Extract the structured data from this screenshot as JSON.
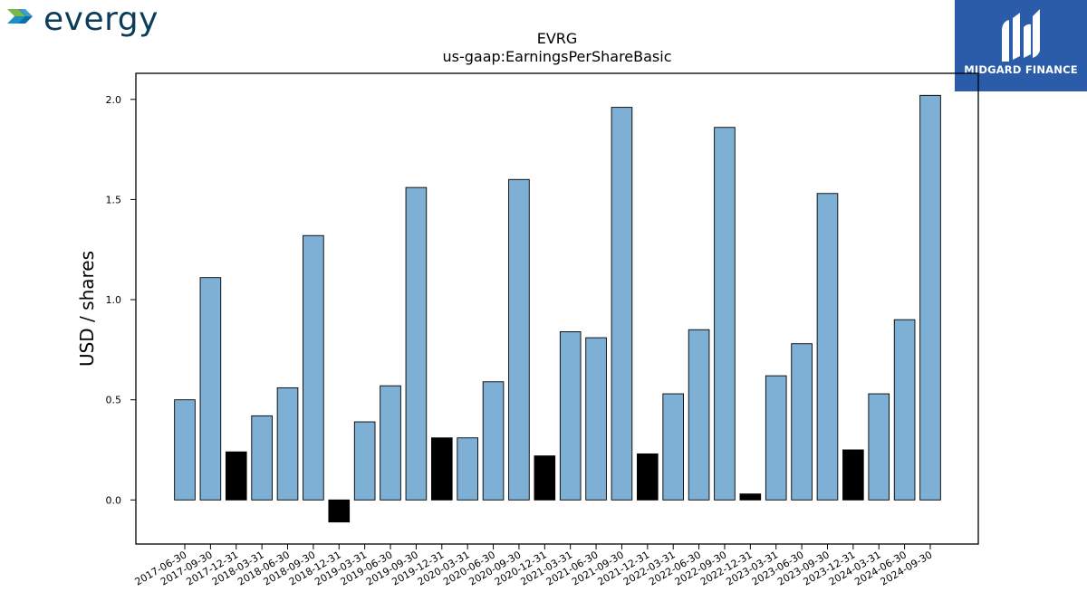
{
  "brand": {
    "company_logo_text": "evergy",
    "company_logo_colors": {
      "text": "#0b3d5a",
      "arrow_green": "#7ab648",
      "arrow_blue": "#1e8fc6"
    },
    "publisher_badge_text": "MIDGARD FINANCE",
    "publisher_badge_color": "#2a5caa"
  },
  "chart_data": {
    "type": "bar",
    "title": "EVRG",
    "subtitle": "us-gaap:EarningsPerShareBasic",
    "xlabel": "",
    "ylabel": "USD / shares",
    "ylim": [
      -0.22,
      2.13
    ],
    "yticks": [
      "0.0",
      "0.5",
      "1.0",
      "1.5",
      "2.0"
    ],
    "grid": false,
    "bar_colors": {
      "default": "#7eb0d5",
      "highlight": "#000000"
    },
    "categories": [
      "2017-06-30",
      "2017-09-30",
      "2017-12-31",
      "2018-03-31",
      "2018-06-30",
      "2018-09-30",
      "2018-12-31",
      "2019-03-31",
      "2019-06-30",
      "2019-09-30",
      "2019-12-31",
      "2020-03-31",
      "2020-06-30",
      "2020-09-30",
      "2020-12-31",
      "2021-03-31",
      "2021-06-30",
      "2021-09-30",
      "2021-12-31",
      "2022-03-31",
      "2022-06-30",
      "2022-09-30",
      "2022-12-31",
      "2023-03-31",
      "2023-06-30",
      "2023-09-30",
      "2023-12-31",
      "2024-03-31",
      "2024-06-30",
      "2024-09-30"
    ],
    "values": [
      0.5,
      1.11,
      0.24,
      0.42,
      0.56,
      1.32,
      -0.11,
      0.39,
      0.57,
      1.56,
      0.31,
      0.31,
      0.59,
      1.6,
      0.22,
      0.84,
      0.81,
      1.96,
      0.23,
      0.53,
      0.85,
      1.86,
      0.03,
      0.62,
      0.78,
      1.53,
      0.25,
      0.53,
      0.9,
      2.02
    ],
    "highlight": [
      false,
      false,
      true,
      false,
      false,
      false,
      true,
      false,
      false,
      false,
      true,
      false,
      false,
      false,
      true,
      false,
      false,
      false,
      true,
      false,
      false,
      false,
      true,
      false,
      false,
      false,
      true,
      false,
      false,
      false
    ]
  }
}
